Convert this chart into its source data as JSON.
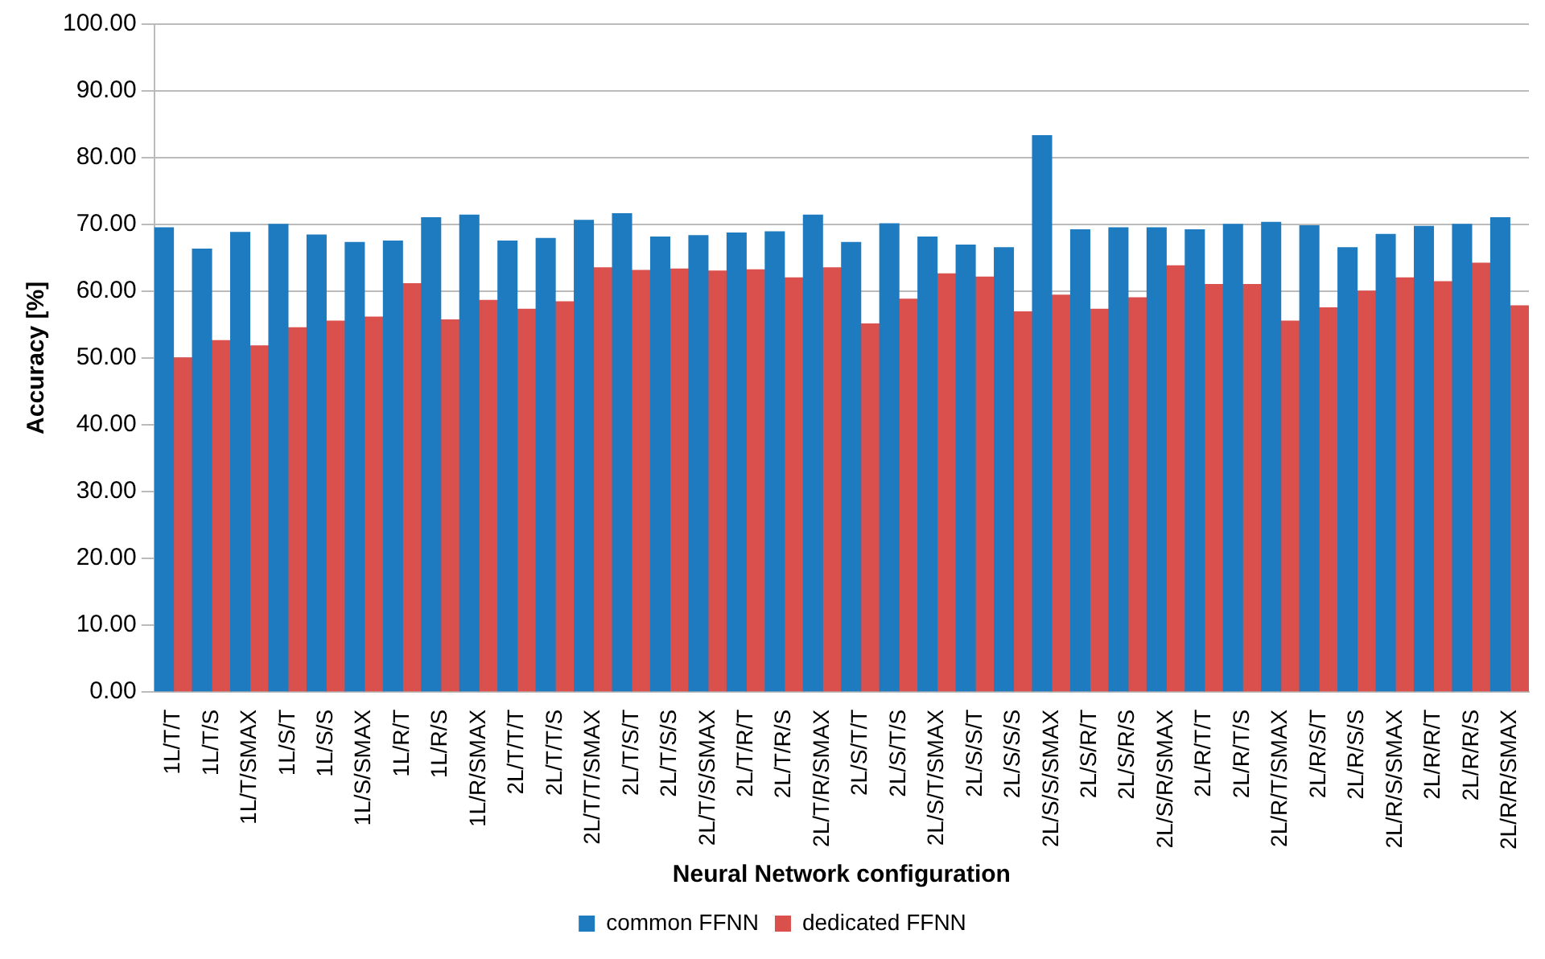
{
  "chart_data": {
    "type": "bar",
    "xlabel": "Neural Network configuration",
    "ylabel": "Accuracy [%]",
    "categories": [
      "1L/T/T",
      "1L/T/S",
      "1L/T/SMAX",
      "1L/S/T",
      "1L/S/S",
      "1L/S/SMAX",
      "1L/R/T",
      "1L/R/S",
      "1L/R/SMAX",
      "2L/T/T/T",
      "2L/T/T/S",
      "2L/T/T/SMAX",
      "2L/T/S/T",
      "2L/T/S/S",
      "2L/T/S/SMAX",
      "2L/T/R/T",
      "2L/T/R/S",
      "2L/T/R/SMAX",
      "2L/S/T/T",
      "2L/S/T/S",
      "2L/S/T/SMAX",
      "2L/S/S/T",
      "2L/S/S/S",
      "2L/S/S/SMAX",
      "2L/S/R/T",
      "2L/S/R/S",
      "2L/S/R/SMAX",
      "2L/R/T/T",
      "2L/R/T/S",
      "2L/R/T/SMAX",
      "2L/R/S/T",
      "2L/R/S/S",
      "2L/R/S/SMAX",
      "2L/R/R/T",
      "2L/R/R/S",
      "2L/R/R/SMAX"
    ],
    "series": [
      {
        "name": "common FFNN",
        "color": "#1f7bbf",
        "values": [
          69.5,
          66.3,
          68.8,
          70,
          68.4,
          67.3,
          67.5,
          71,
          71.4,
          67.5,
          67.9,
          70.6,
          71.6,
          68.1,
          68.3,
          68.7,
          68.9,
          71.4,
          67.3,
          70.1,
          68.1,
          66.9,
          66.5,
          83.3,
          69.2,
          69.5,
          69.5,
          69.2,
          70,
          70.3,
          69.8,
          66.5,
          68.5,
          69.7,
          70,
          71
        ]
      },
      {
        "name": "dedicated FFNN",
        "color": "#d9504c",
        "values": [
          50,
          52.6,
          51.8,
          54.5,
          55.5,
          56.1,
          61.1,
          55.7,
          58.6,
          57.3,
          58.4,
          63.5,
          63.1,
          63.3,
          63,
          63.2,
          62,
          63.5,
          55.1,
          58.8,
          62.6,
          62.1,
          56.9,
          59.4,
          57.3,
          59,
          63.8,
          61,
          61,
          55.5,
          57.5,
          60,
          62,
          61.4,
          64.2,
          57.8
        ]
      }
    ],
    "ylim": [
      0,
      100
    ],
    "yticks": [
      {
        "value": 0,
        "label": "0.00"
      },
      {
        "value": 10,
        "label": "10.00"
      },
      {
        "value": 20,
        "label": "20.00"
      },
      {
        "value": 30,
        "label": "30.00"
      },
      {
        "value": 40,
        "label": "40.00"
      },
      {
        "value": 50,
        "label": "50.00"
      },
      {
        "value": 60,
        "label": "60.00"
      },
      {
        "value": 70,
        "label": "70.00"
      },
      {
        "value": 80,
        "label": "80.00"
      },
      {
        "value": 90,
        "label": "90.00"
      },
      {
        "value": 100,
        "label": "100.00"
      }
    ],
    "grid": "y",
    "legend": "bottom"
  }
}
